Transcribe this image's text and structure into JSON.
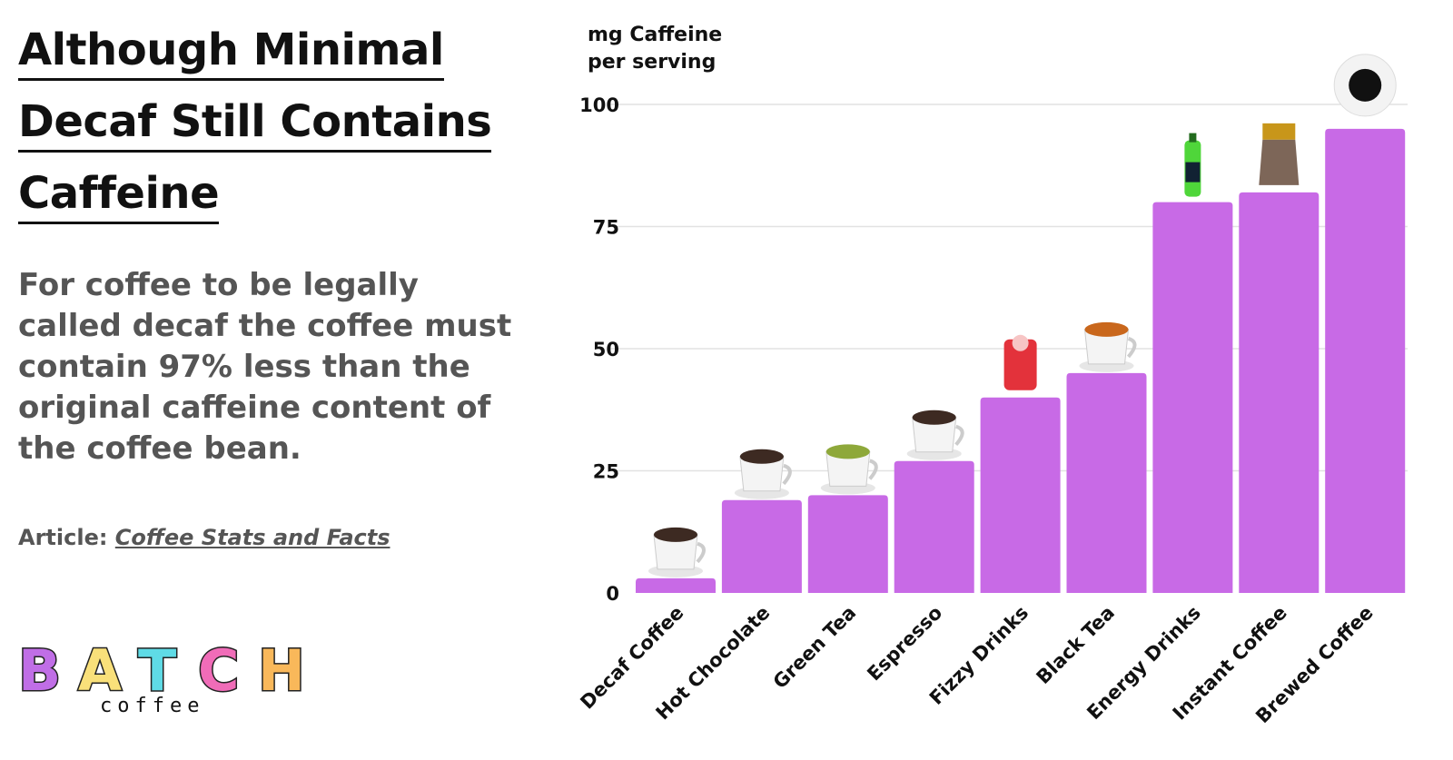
{
  "title_lines": [
    "Although Minimal",
    "Decaf Still Contains",
    "Caffeine"
  ],
  "description": "For coffee to be legally called decaf the coffee must contain 97% less than the original caffeine content of the coffee bean.",
  "article": {
    "label": "Article:",
    "link_text": "Coffee Stats and Facts"
  },
  "logo": {
    "text": "BATCH",
    "sub": "coffee",
    "letter_colors": [
      "#c06ee6",
      "#f9e07a",
      "#5fdbe6",
      "#f06cb8",
      "#f9b85a"
    ]
  },
  "colors": {
    "bar": "#c86ae6",
    "grid": "#e2e2e2"
  },
  "chart_data": {
    "type": "bar",
    "ylabel": "mg Caffeine per serving",
    "ylabel_lines": [
      "mg Caffeine",
      "per serving"
    ],
    "categories": [
      "Decaf Coffee",
      "Hot Chocolate",
      "Green Tea",
      "Espresso",
      "Fizzy Drinks",
      "Black Tea",
      "Energy Drinks",
      "Instant Coffee",
      "Brewed Coffee"
    ],
    "values": [
      3,
      19,
      20,
      27,
      40,
      45,
      80,
      82,
      95
    ],
    "icons": [
      "coffee-mug-icon",
      "hot-chocolate-icon",
      "green-tea-cup-icon",
      "espresso-cup-icon",
      "cola-can-icon",
      "black-tea-cup-icon",
      "energy-drink-bottle-icon",
      "instant-coffee-jar-icon",
      "brewed-coffee-cup-icon"
    ],
    "ylim": [
      0,
      100
    ],
    "yticks": [
      "0",
      "25",
      "50",
      "75",
      "100"
    ],
    "grid": true
  }
}
